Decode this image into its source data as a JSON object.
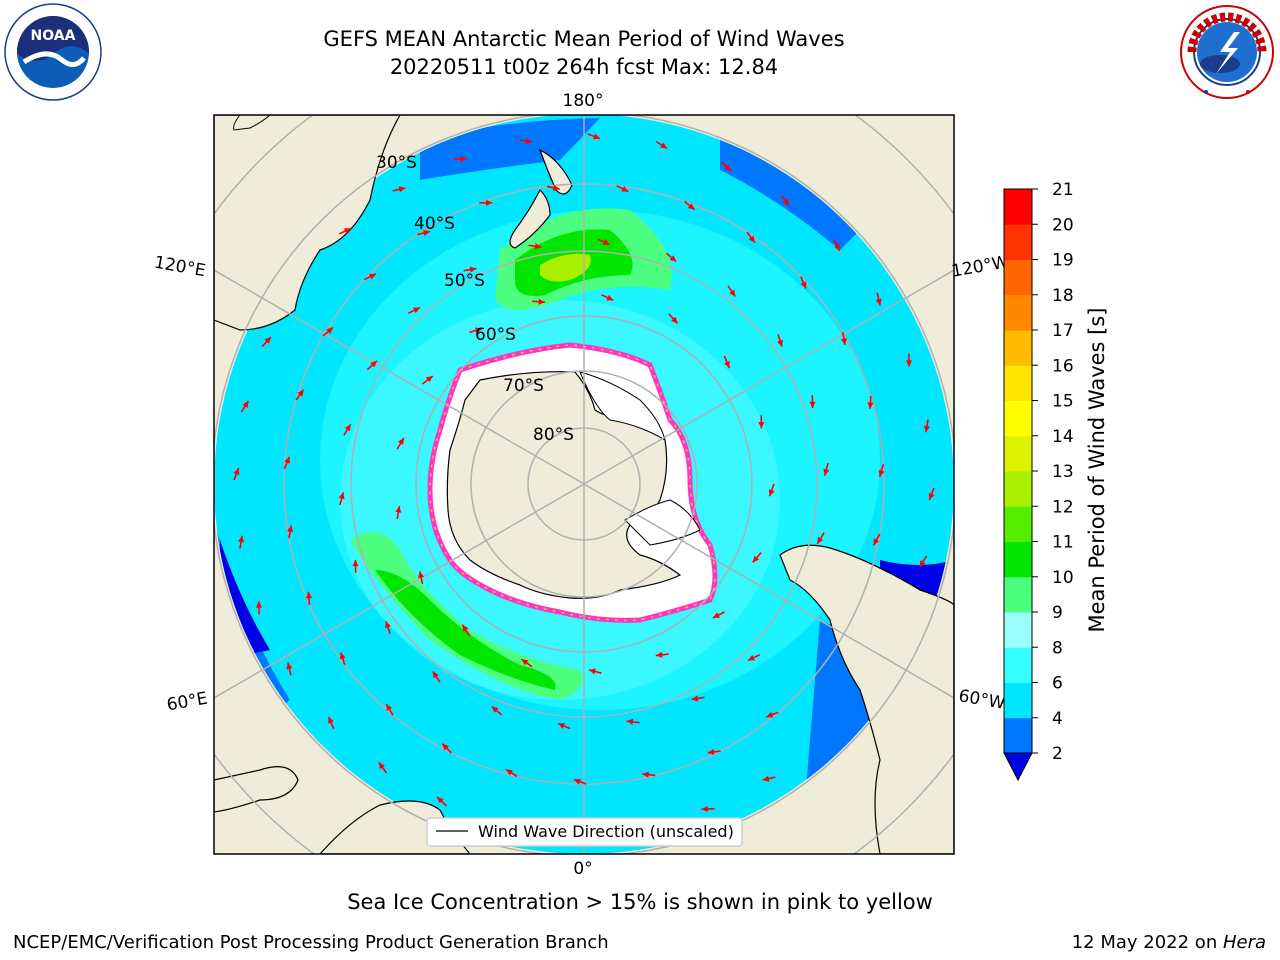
{
  "title": {
    "line1": "GEFS MEAN Antarctic Mean Period of Wind Waves",
    "line2": "20220511 t00z 264h fcst   Max: 12.84"
  },
  "map": {
    "projection": "south-polar-stereographic",
    "longitude_labels": [
      "180°",
      "120°E",
      "120°W",
      "60°E",
      "60°W",
      "0°"
    ],
    "latitude_labels": [
      "30°S",
      "40°S",
      "50°S",
      "60°S",
      "70°S",
      "80°S"
    ],
    "legend": "Wind Wave Direction (unscaled)",
    "colors": {
      "land": "#efecd9",
      "sea_ice_white": "#ffffff",
      "sea_ice_edge": [
        "#ff33cc",
        "#ffcc00"
      ],
      "vector": "#ff0000"
    }
  },
  "colorbar": {
    "label": "Mean Period of Wind Waves [s]",
    "ticks": [
      "2",
      "4",
      "6",
      "8",
      "9",
      "10",
      "11",
      "12",
      "13",
      "14",
      "15",
      "16",
      "17",
      "18",
      "19",
      "20",
      "21"
    ],
    "colors": [
      "#0000e6",
      "#0077ff",
      "#00e6ff",
      "#33ffff",
      "#99ffff",
      "#4dff80",
      "#00e600",
      "#55ee00",
      "#aaee00",
      "#ddf200",
      "#ffff00",
      "#ffe600",
      "#ffbb00",
      "#ff8800",
      "#ff6600",
      "#ff3300",
      "#ff0000"
    ],
    "extend": "min"
  },
  "subtitle": "Sea Ice Concentration > 15% is shown in pink to yellow",
  "footer": {
    "left": "NCEP/EMC/Verification Post Processing Product Generation Branch",
    "right_date": "12 May 2022 on ",
    "right_machine": "Hera"
  },
  "logos": {
    "left": {
      "name": "noaa-logo",
      "text": "NOAA"
    },
    "right": {
      "name": "nws-logo",
      "text": "NATIONAL WEATHER SERVICE"
    }
  }
}
